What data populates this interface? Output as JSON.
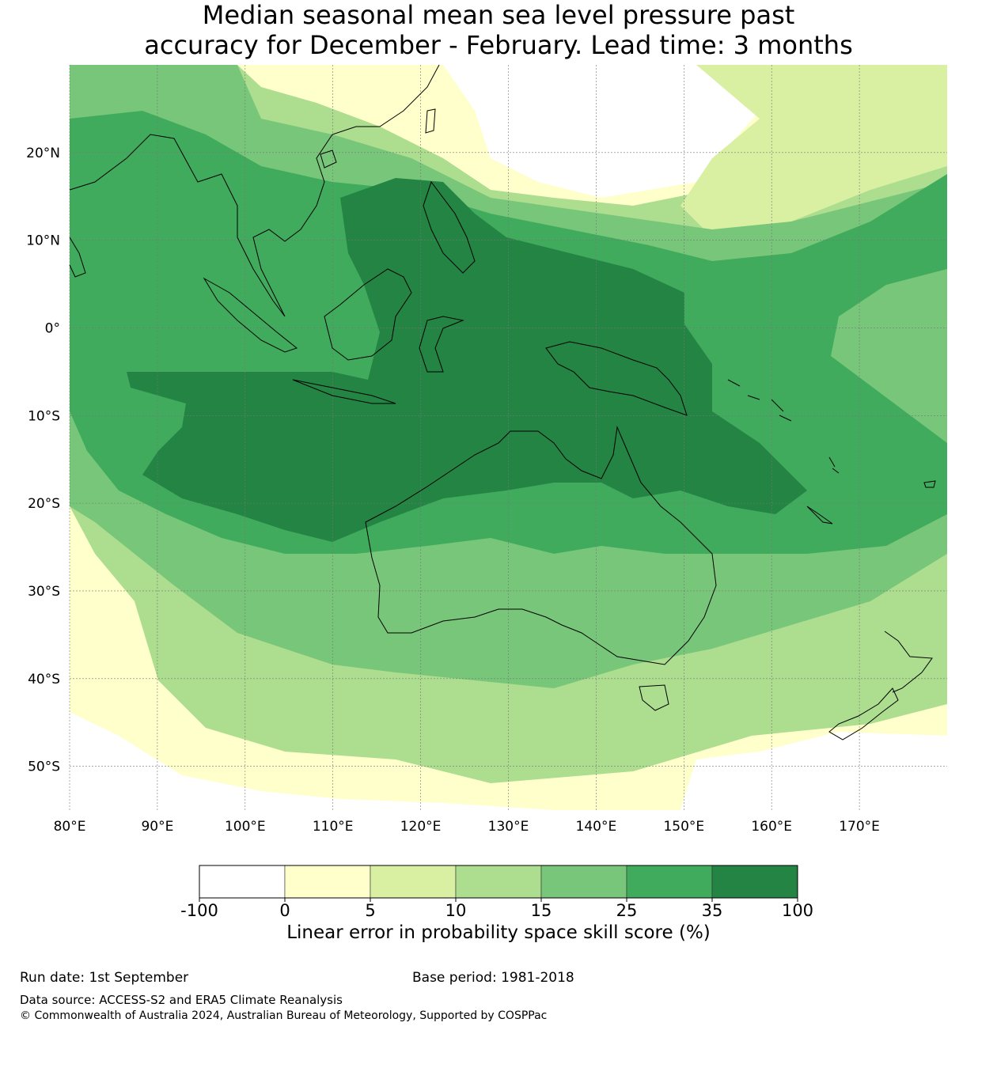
{
  "title_line1": "Median seasonal mean sea level pressure past",
  "title_line2": "accuracy for December - February. Lead time: 3 months",
  "map": {
    "lon_range": [
      80,
      180
    ],
    "lat_range": [
      -55,
      30
    ],
    "lon_ticks": [
      "80°E",
      "90°E",
      "100°E",
      "110°E",
      "120°E",
      "130°E",
      "140°E",
      "150°E",
      "160°E",
      "170°E"
    ],
    "lat_ticks": [
      "20°N",
      "10°N",
      "0°",
      "10°S",
      "20°S",
      "30°S",
      "40°S",
      "50°S"
    ],
    "grid": true
  },
  "colorbar": {
    "bounds": [
      "-100",
      "0",
      "5",
      "10",
      "15",
      "25",
      "35",
      "100"
    ],
    "colors": [
      "#ffffff",
      "#ffffcc",
      "#d9f0a3",
      "#addd8e",
      "#78c679",
      "#41ab5d",
      "#238443"
    ],
    "label": "Linear error in probability space skill score (%)"
  },
  "footer": {
    "run_date": "Run date: 1st September",
    "base_period": "Base period: 1981-2018",
    "data_source": "Data source: ACCESS-S2 and ERA5 Climate Reanalysis",
    "copyright": "© Commonwealth of Australia 2024, Australian Bureau of Meteorology, Supported by COSPPac"
  }
}
